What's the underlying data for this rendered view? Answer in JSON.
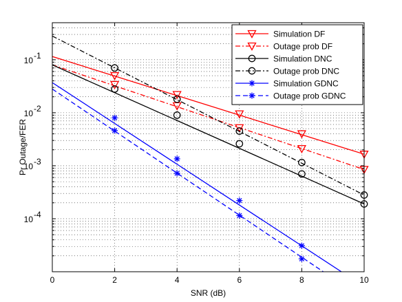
{
  "chart_data": {
    "type": "line",
    "xlabel": "SNR (dB)",
    "ylabel": "Pr Outage/FER",
    "xlim": [
      0,
      10
    ],
    "ylim": [
      1e-05,
      0.5
    ],
    "yscale": "log",
    "grid": true,
    "legend_position": "top-right",
    "x_ticks": [
      0,
      2,
      4,
      6,
      8,
      10
    ],
    "x_tick_labels": [
      "0",
      "2",
      "4",
      "6",
      "8",
      "10"
    ],
    "y_ticks": [
      0.0001,
      0.001,
      0.01,
      0.1
    ],
    "y_tick_labels": [
      {
        "base": "10",
        "exp": "-4"
      },
      {
        "base": "10",
        "exp": "-3"
      },
      {
        "base": "10",
        "exp": "-2"
      },
      {
        "base": "10",
        "exp": "-1"
      }
    ],
    "series": [
      {
        "name": "Simulation DF",
        "color": "#ff0000",
        "dash": "solid",
        "marker": "triangle-down",
        "line_x": [
          0,
          10
        ],
        "line_y": [
          0.115,
          0.00165
        ],
        "marker_x": [
          2,
          4,
          6,
          8,
          10
        ],
        "marker_y": [
          0.05,
          0.022,
          0.0095,
          0.004,
          0.00165
        ]
      },
      {
        "name": "Outage prob DF",
        "color": "#ff0000",
        "dash": "dashdot",
        "marker": "triangle-down",
        "line_x": [
          0,
          10
        ],
        "line_y": [
          0.08,
          0.00085
        ],
        "marker_x": [
          2,
          4,
          6,
          8,
          10
        ],
        "marker_y": [
          0.034,
          0.0135,
          0.0052,
          0.0021,
          0.00085
        ]
      },
      {
        "name": "Simulation DNC",
        "color": "#000000",
        "dash": "solid",
        "marker": "circle",
        "line_x": [
          0,
          10
        ],
        "line_y": [
          0.08,
          0.00019
        ],
        "marker_x": [
          2,
          4,
          6,
          8,
          10
        ],
        "marker_y": [
          0.028,
          0.009,
          0.0026,
          0.0007,
          0.00019
        ]
      },
      {
        "name": "Outage prob DNC",
        "color": "#000000",
        "dash": "dashdot",
        "marker": "circle",
        "line_x": [
          0,
          10
        ],
        "line_y": [
          0.28,
          0.00028
        ],
        "marker_x": [
          2,
          4,
          6,
          8,
          10
        ],
        "marker_y": [
          0.07,
          0.018,
          0.0045,
          0.00115,
          0.00028
        ]
      },
      {
        "name": "Simulation GDNC",
        "color": "#0000ff",
        "dash": "solid",
        "marker": "asterisk",
        "line_x": [
          0,
          9.27
        ],
        "line_y": [
          0.037,
          1e-05
        ],
        "marker_x": [
          2,
          4,
          6,
          8
        ],
        "marker_y": [
          0.008,
          0.00135,
          0.00022,
          3.1e-05
        ]
      },
      {
        "name": "Outage prob GDNC",
        "color": "#0000ff",
        "dash": "dashed",
        "marker": "asterisk",
        "line_x": [
          0,
          8.69
        ],
        "line_y": [
          0.028,
          1e-05
        ],
        "marker_x": [
          2,
          4,
          6,
          8
        ],
        "marker_y": [
          0.0046,
          0.00072,
          0.000115,
          1.75e-05
        ]
      }
    ]
  }
}
